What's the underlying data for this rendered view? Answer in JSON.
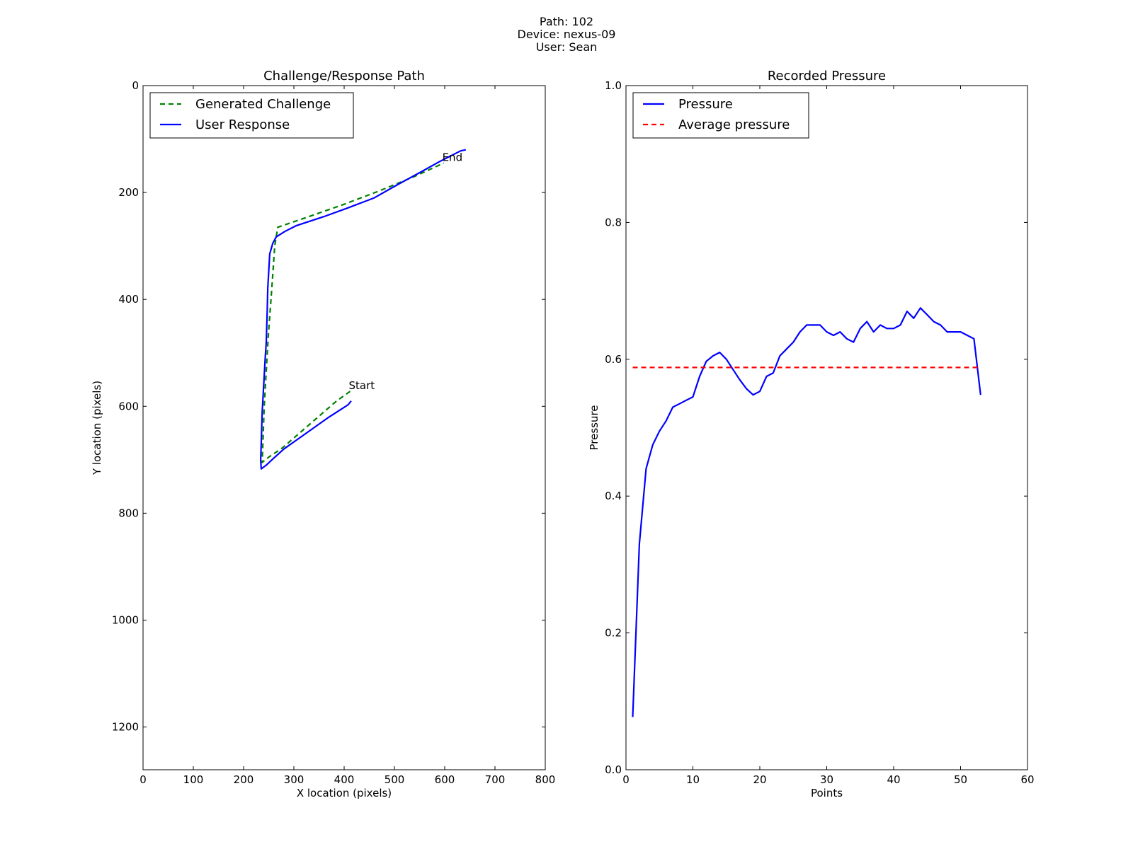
{
  "header": {
    "lines": [
      "Path: 102",
      "Device: nexus-09",
      "User: Sean"
    ]
  },
  "chart_data": [
    {
      "type": "line",
      "title": "Challenge/Response Path",
      "xlabel": "X location (pixels)",
      "ylabel": "Y location (pixels)",
      "xlim": [
        0,
        800
      ],
      "ylim": [
        1280,
        0
      ],
      "y_inverted": true,
      "xticks": [
        0,
        100,
        200,
        300,
        400,
        500,
        600,
        700,
        800
      ],
      "yticks": [
        0,
        200,
        400,
        600,
        800,
        1000,
        1200
      ],
      "legend_position": "top-left",
      "series": [
        {
          "name": "Generated Challenge",
          "style": "dashed",
          "color": "#008000",
          "x": [
            412,
            385,
            358,
            331,
            304,
            277,
            250,
            237,
            241,
            249,
            256,
            262,
            268,
            330,
            400,
            470,
            540,
            598
          ],
          "y": [
            572,
            590,
            612,
            634,
            656,
            678,
            695,
            705,
            600,
            470,
            380,
            300,
            265,
            245,
            222,
            197,
            170,
            145
          ]
        },
        {
          "name": "User Response",
          "style": "solid",
          "color": "#0000ff",
          "x": [
            414,
            408,
            395,
            370,
            340,
            310,
            280,
            260,
            245,
            235,
            234,
            235,
            237,
            240,
            243,
            245,
            247,
            248,
            252,
            258,
            265,
            282,
            305,
            360,
            410,
            460,
            505,
            550,
            590,
            615,
            632,
            642
          ],
          "y": [
            590,
            597,
            605,
            620,
            640,
            660,
            680,
            697,
            710,
            717,
            700,
            670,
            610,
            560,
            510,
            480,
            420,
            380,
            315,
            295,
            283,
            273,
            262,
            245,
            228,
            210,
            186,
            163,
            142,
            130,
            122,
            120
          ]
        }
      ],
      "annotations": [
        {
          "text": "Start",
          "x": 412,
          "y": 572
        },
        {
          "text": "End",
          "x": 598,
          "y": 145
        }
      ]
    },
    {
      "type": "line",
      "title": "Recorded Pressure",
      "xlabel": "Points",
      "ylabel": "Pressure",
      "xlim": [
        0,
        60
      ],
      "ylim": [
        0.0,
        1.0
      ],
      "xticks": [
        0,
        10,
        20,
        30,
        40,
        50,
        60
      ],
      "yticks": [
        "0.0",
        "0.2",
        "0.4",
        "0.6",
        "0.8",
        "1.0"
      ],
      "legend_position": "top-left",
      "series": [
        {
          "name": "Pressure",
          "style": "solid",
          "color": "#0000ff",
          "x": [
            1,
            2,
            3,
            4,
            5,
            6,
            7,
            8,
            9,
            10,
            11,
            12,
            13,
            14,
            15,
            16,
            17,
            18,
            19,
            20,
            21,
            22,
            23,
            24,
            25,
            26,
            27,
            28,
            29,
            30,
            31,
            32,
            33,
            34,
            35,
            36,
            37,
            38,
            39,
            40,
            41,
            42,
            43,
            44,
            45,
            46,
            47,
            48,
            49,
            50,
            51,
            52,
            53
          ],
          "y": [
            0.077,
            0.33,
            0.44,
            0.475,
            0.495,
            0.51,
            0.53,
            0.535,
            0.54,
            0.545,
            0.575,
            0.597,
            0.605,
            0.61,
            0.6,
            0.585,
            0.57,
            0.557,
            0.548,
            0.553,
            0.575,
            0.58,
            0.605,
            0.615,
            0.625,
            0.64,
            0.65,
            0.65,
            0.65,
            0.64,
            0.635,
            0.64,
            0.63,
            0.625,
            0.645,
            0.655,
            0.64,
            0.65,
            0.645,
            0.645,
            0.65,
            0.67,
            0.66,
            0.675,
            0.665,
            0.655,
            0.65,
            0.64,
            0.64,
            0.64,
            0.635,
            0.63,
            0.548
          ]
        },
        {
          "name": "Average pressure",
          "style": "dashed",
          "color": "#ff0000",
          "x": [
            1,
            53
          ],
          "y": [
            0.588,
            0.588
          ]
        }
      ]
    }
  ]
}
